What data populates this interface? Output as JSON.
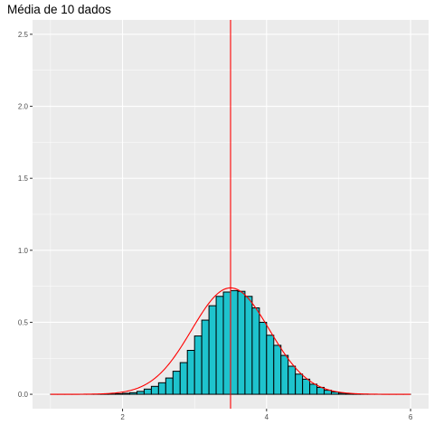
{
  "chart_data": {
    "type": "bar",
    "title": "Média de 10 dados",
    "xlabel": "",
    "ylabel": "",
    "xlim": [
      0.75,
      6.25
    ],
    "ylim": [
      -0.1,
      2.6
    ],
    "x_ticks": [
      2,
      4,
      6
    ],
    "x_tick_labels": [
      "2",
      "4",
      "6"
    ],
    "y_ticks": [
      0,
      0.5,
      1,
      1.5,
      2,
      2.5
    ],
    "y_tick_labels": [
      "0.0",
      "0.5",
      "1.0",
      "1.5",
      "2.0",
      "2.5"
    ],
    "grid": true,
    "bins": {
      "x": [
        1.05,
        1.15,
        1.25,
        1.35,
        1.45,
        1.55,
        1.65,
        1.75,
        1.85,
        1.95,
        2.05,
        2.15,
        2.25,
        2.35,
        2.45,
        2.55,
        2.65,
        2.75,
        2.85,
        2.95,
        3.05,
        3.15,
        3.25,
        3.35,
        3.45,
        3.55,
        3.65,
        3.75,
        3.85,
        3.95,
        4.05,
        4.15,
        4.25,
        4.35,
        4.45,
        4.55,
        4.65,
        4.75,
        4.85,
        4.95,
        5.05,
        5.15,
        5.25,
        5.35,
        5.45,
        5.55,
        5.65,
        5.75,
        5.85,
        5.95
      ],
      "values": [
        0,
        0,
        0,
        0,
        0,
        0,
        0,
        0,
        0.002,
        0.004,
        0.007,
        0.011,
        0.02,
        0.036,
        0.055,
        0.08,
        0.113,
        0.16,
        0.22,
        0.305,
        0.405,
        0.515,
        0.615,
        0.68,
        0.71,
        0.72,
        0.715,
        0.68,
        0.6,
        0.5,
        0.41,
        0.34,
        0.27,
        0.195,
        0.14,
        0.105,
        0.07,
        0.048,
        0.028,
        0.016,
        0.008,
        0.004,
        0.002,
        0.001,
        0,
        0,
        0,
        0,
        0,
        0
      ],
      "width": 0.1,
      "fill": "#1ec3cd",
      "stroke": "#000000"
    },
    "density_curve": {
      "mean": 3.5,
      "sd": 0.54,
      "x_range": [
        1,
        6
      ],
      "color": "#ff0000"
    },
    "vline": {
      "x": 3.5,
      "color": "#ff0000"
    },
    "panel_color": "#ebebeb",
    "grid_color": "#ffffff"
  }
}
